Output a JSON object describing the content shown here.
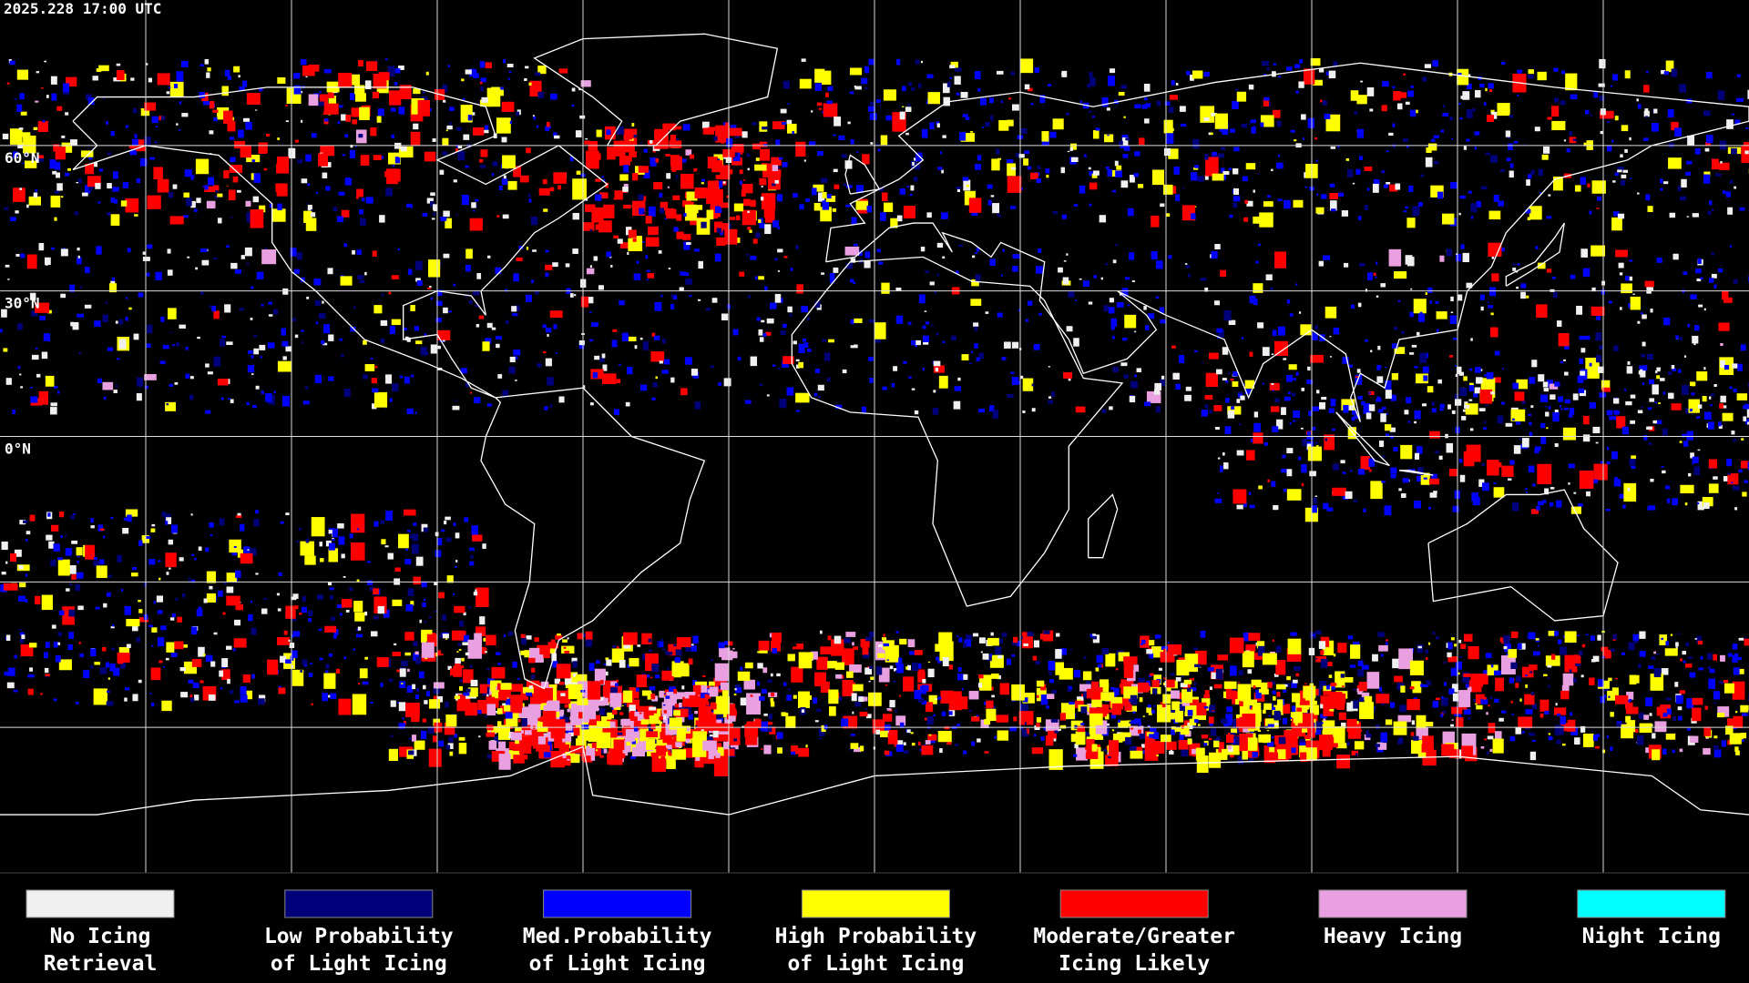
{
  "header": {
    "timestamp": "2025.228 17:00 UTC"
  },
  "map": {
    "latitude_labels": [
      "60°N",
      "30°N",
      "0°N"
    ]
  },
  "legend": {
    "items": [
      {
        "label_lines": [
          "No Icing",
          "Retrieval"
        ],
        "color": "#f0f0f0"
      },
      {
        "label_lines": [
          "Low Probability",
          "of Light Icing"
        ],
        "color": "#00007a"
      },
      {
        "label_lines": [
          "Med.Probability",
          "of Light Icing"
        ],
        "color": "#0000ff"
      },
      {
        "label_lines": [
          "High Probability",
          "of Light Icing"
        ],
        "color": "#ffff00"
      },
      {
        "label_lines": [
          "Moderate/Greater",
          "Icing Likely"
        ],
        "color": "#ff0000"
      },
      {
        "label_lines": [
          "Heavy Icing"
        ],
        "color": "#e8a0e0"
      },
      {
        "label_lines": [
          "Night Icing"
        ],
        "color": "#00ffff"
      }
    ]
  }
}
